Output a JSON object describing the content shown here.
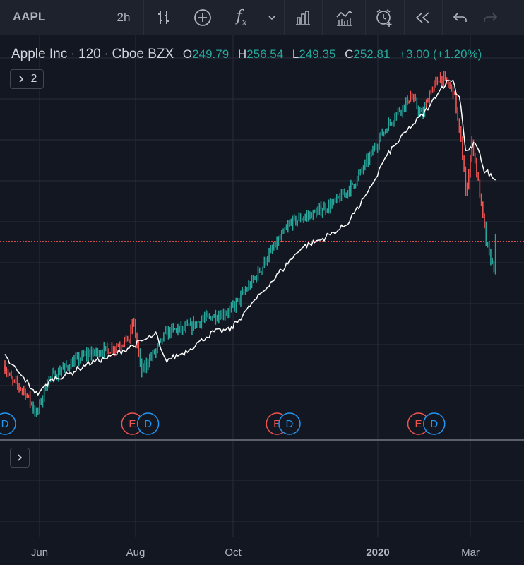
{
  "toolbar": {
    "symbol": "AAPL",
    "interval": "2h",
    "fx_label": "f",
    "fx_sub": "x"
  },
  "legend": {
    "name": "Apple Inc",
    "sep": "·",
    "interval": "120",
    "exchange": "Cboe BZX",
    "open_label": "O",
    "open": "249.79",
    "high_label": "H",
    "high": "256.54",
    "low_label": "L",
    "low": "249.35",
    "close_label": "C",
    "close": "252.81",
    "change": "+3.00 (+1.20%)"
  },
  "indicator_toggle": {
    "count": "2"
  },
  "colors": {
    "background": "#131722",
    "grid": "#2a2e39",
    "up": "#26a69a",
    "down": "#ef5350",
    "compare_line": "#ffffff",
    "earnings": "#ef5350",
    "dividends": "#2196f3"
  },
  "chart_data": {
    "type": "line",
    "series": [],
    "x_tick_labels": [
      "Jun",
      "Aug",
      "Oct",
      "2020",
      "Mar"
    ],
    "price_points": [
      {
        "t": "2019-05-10",
        "v": 197.0
      },
      {
        "t": "2019-05-15",
        "v": 190.0
      },
      {
        "t": "2019-05-22",
        "v": 186.0
      },
      {
        "t": "2019-05-31",
        "v": 175.0
      },
      {
        "t": "2019-06-07",
        "v": 191.0
      },
      {
        "t": "2019-06-18",
        "v": 196.0
      },
      {
        "t": "2019-07-01",
        "v": 202.0
      },
      {
        "t": "2019-07-15",
        "v": 204.0
      },
      {
        "t": "2019-07-29",
        "v": 209.0
      },
      {
        "t": "2019-07-31",
        "v": 218.0
      },
      {
        "t": "2019-08-05",
        "v": 194.0
      },
      {
        "t": "2019-08-15",
        "v": 204.0
      },
      {
        "t": "2019-08-21",
        "v": 212.0
      },
      {
        "t": "2019-09-05",
        "v": 214.0
      },
      {
        "t": "2019-09-13",
        "v": 218.0
      },
      {
        "t": "2019-09-25",
        "v": 220.0
      },
      {
        "t": "2019-10-03",
        "v": 223.0
      },
      {
        "t": "2019-10-15",
        "v": 235.0
      },
      {
        "t": "2019-10-25",
        "v": 246.0
      },
      {
        "t": "2019-11-08",
        "v": 261.0
      },
      {
        "t": "2019-11-25",
        "v": 266.0
      },
      {
        "t": "2019-12-06",
        "v": 270.0
      },
      {
        "t": "2019-12-20",
        "v": 280.0
      },
      {
        "t": "2020-01-02",
        "v": 297.0
      },
      {
        "t": "2020-01-15",
        "v": 311.0
      },
      {
        "t": "2020-01-24",
        "v": 318.0
      },
      {
        "t": "2020-01-31",
        "v": 309.0
      },
      {
        "t": "2020-02-05",
        "v": 321.0
      },
      {
        "t": "2020-02-12",
        "v": 327.0
      },
      {
        "t": "2020-02-20",
        "v": 320.0
      },
      {
        "t": "2020-02-24",
        "v": 298.0
      },
      {
        "t": "2020-02-28",
        "v": 273.0
      },
      {
        "t": "2020-03-03",
        "v": 298.0
      },
      {
        "t": "2020-03-09",
        "v": 266.0
      },
      {
        "t": "2020-03-12",
        "v": 249.0
      },
      {
        "t": "2020-03-16",
        "v": 241.0
      },
      {
        "t": "2020-03-17",
        "v": 252.8
      }
    ],
    "compare_line_points": [
      {
        "t": "2019-05-10",
        "v": 201.0
      },
      {
        "t": "2019-05-20",
        "v": 193.0
      },
      {
        "t": "2019-05-31",
        "v": 184.0
      },
      {
        "t": "2019-06-10",
        "v": 191.0
      },
      {
        "t": "2019-06-20",
        "v": 193.0
      },
      {
        "t": "2019-07-03",
        "v": 198.0
      },
      {
        "t": "2019-07-17",
        "v": 201.0
      },
      {
        "t": "2019-07-31",
        "v": 206.0
      },
      {
        "t": "2019-08-15",
        "v": 211.0
      },
      {
        "t": "2019-08-20",
        "v": 199.0
      },
      {
        "t": "2019-09-02",
        "v": 203.0
      },
      {
        "t": "2019-09-20",
        "v": 212.0
      },
      {
        "t": "2019-10-01",
        "v": 213.0
      },
      {
        "t": "2019-10-15",
        "v": 225.0
      },
      {
        "t": "2019-10-30",
        "v": 237.0
      },
      {
        "t": "2019-11-15",
        "v": 250.0
      },
      {
        "t": "2019-11-29",
        "v": 254.0
      },
      {
        "t": "2019-12-13",
        "v": 260.0
      },
      {
        "t": "2019-12-27",
        "v": 274.0
      },
      {
        "t": "2020-01-08",
        "v": 291.0
      },
      {
        "t": "2020-01-22",
        "v": 303.0
      },
      {
        "t": "2020-02-03",
        "v": 312.0
      },
      {
        "t": "2020-02-12",
        "v": 322.0
      },
      {
        "t": "2020-02-19",
        "v": 326.0
      },
      {
        "t": "2020-02-24",
        "v": 316.0
      },
      {
        "t": "2020-02-28",
        "v": 293.0
      },
      {
        "t": "2020-03-05",
        "v": 297.0
      },
      {
        "t": "2020-03-10",
        "v": 285.0
      },
      {
        "t": "2020-03-17",
        "v": 281.0
      }
    ],
    "horizontal_line": 252.81,
    "events": [
      {
        "kind": "D",
        "t": "2019-05-10"
      },
      {
        "kind": "E",
        "t": "2019-07-30"
      },
      {
        "kind": "D",
        "t": "2019-08-09"
      },
      {
        "kind": "E",
        "t": "2019-10-30"
      },
      {
        "kind": "D",
        "t": "2019-11-07"
      },
      {
        "kind": "E",
        "t": "2020-01-28"
      },
      {
        "kind": "D",
        "t": "2020-02-07"
      }
    ],
    "grid": true
  }
}
